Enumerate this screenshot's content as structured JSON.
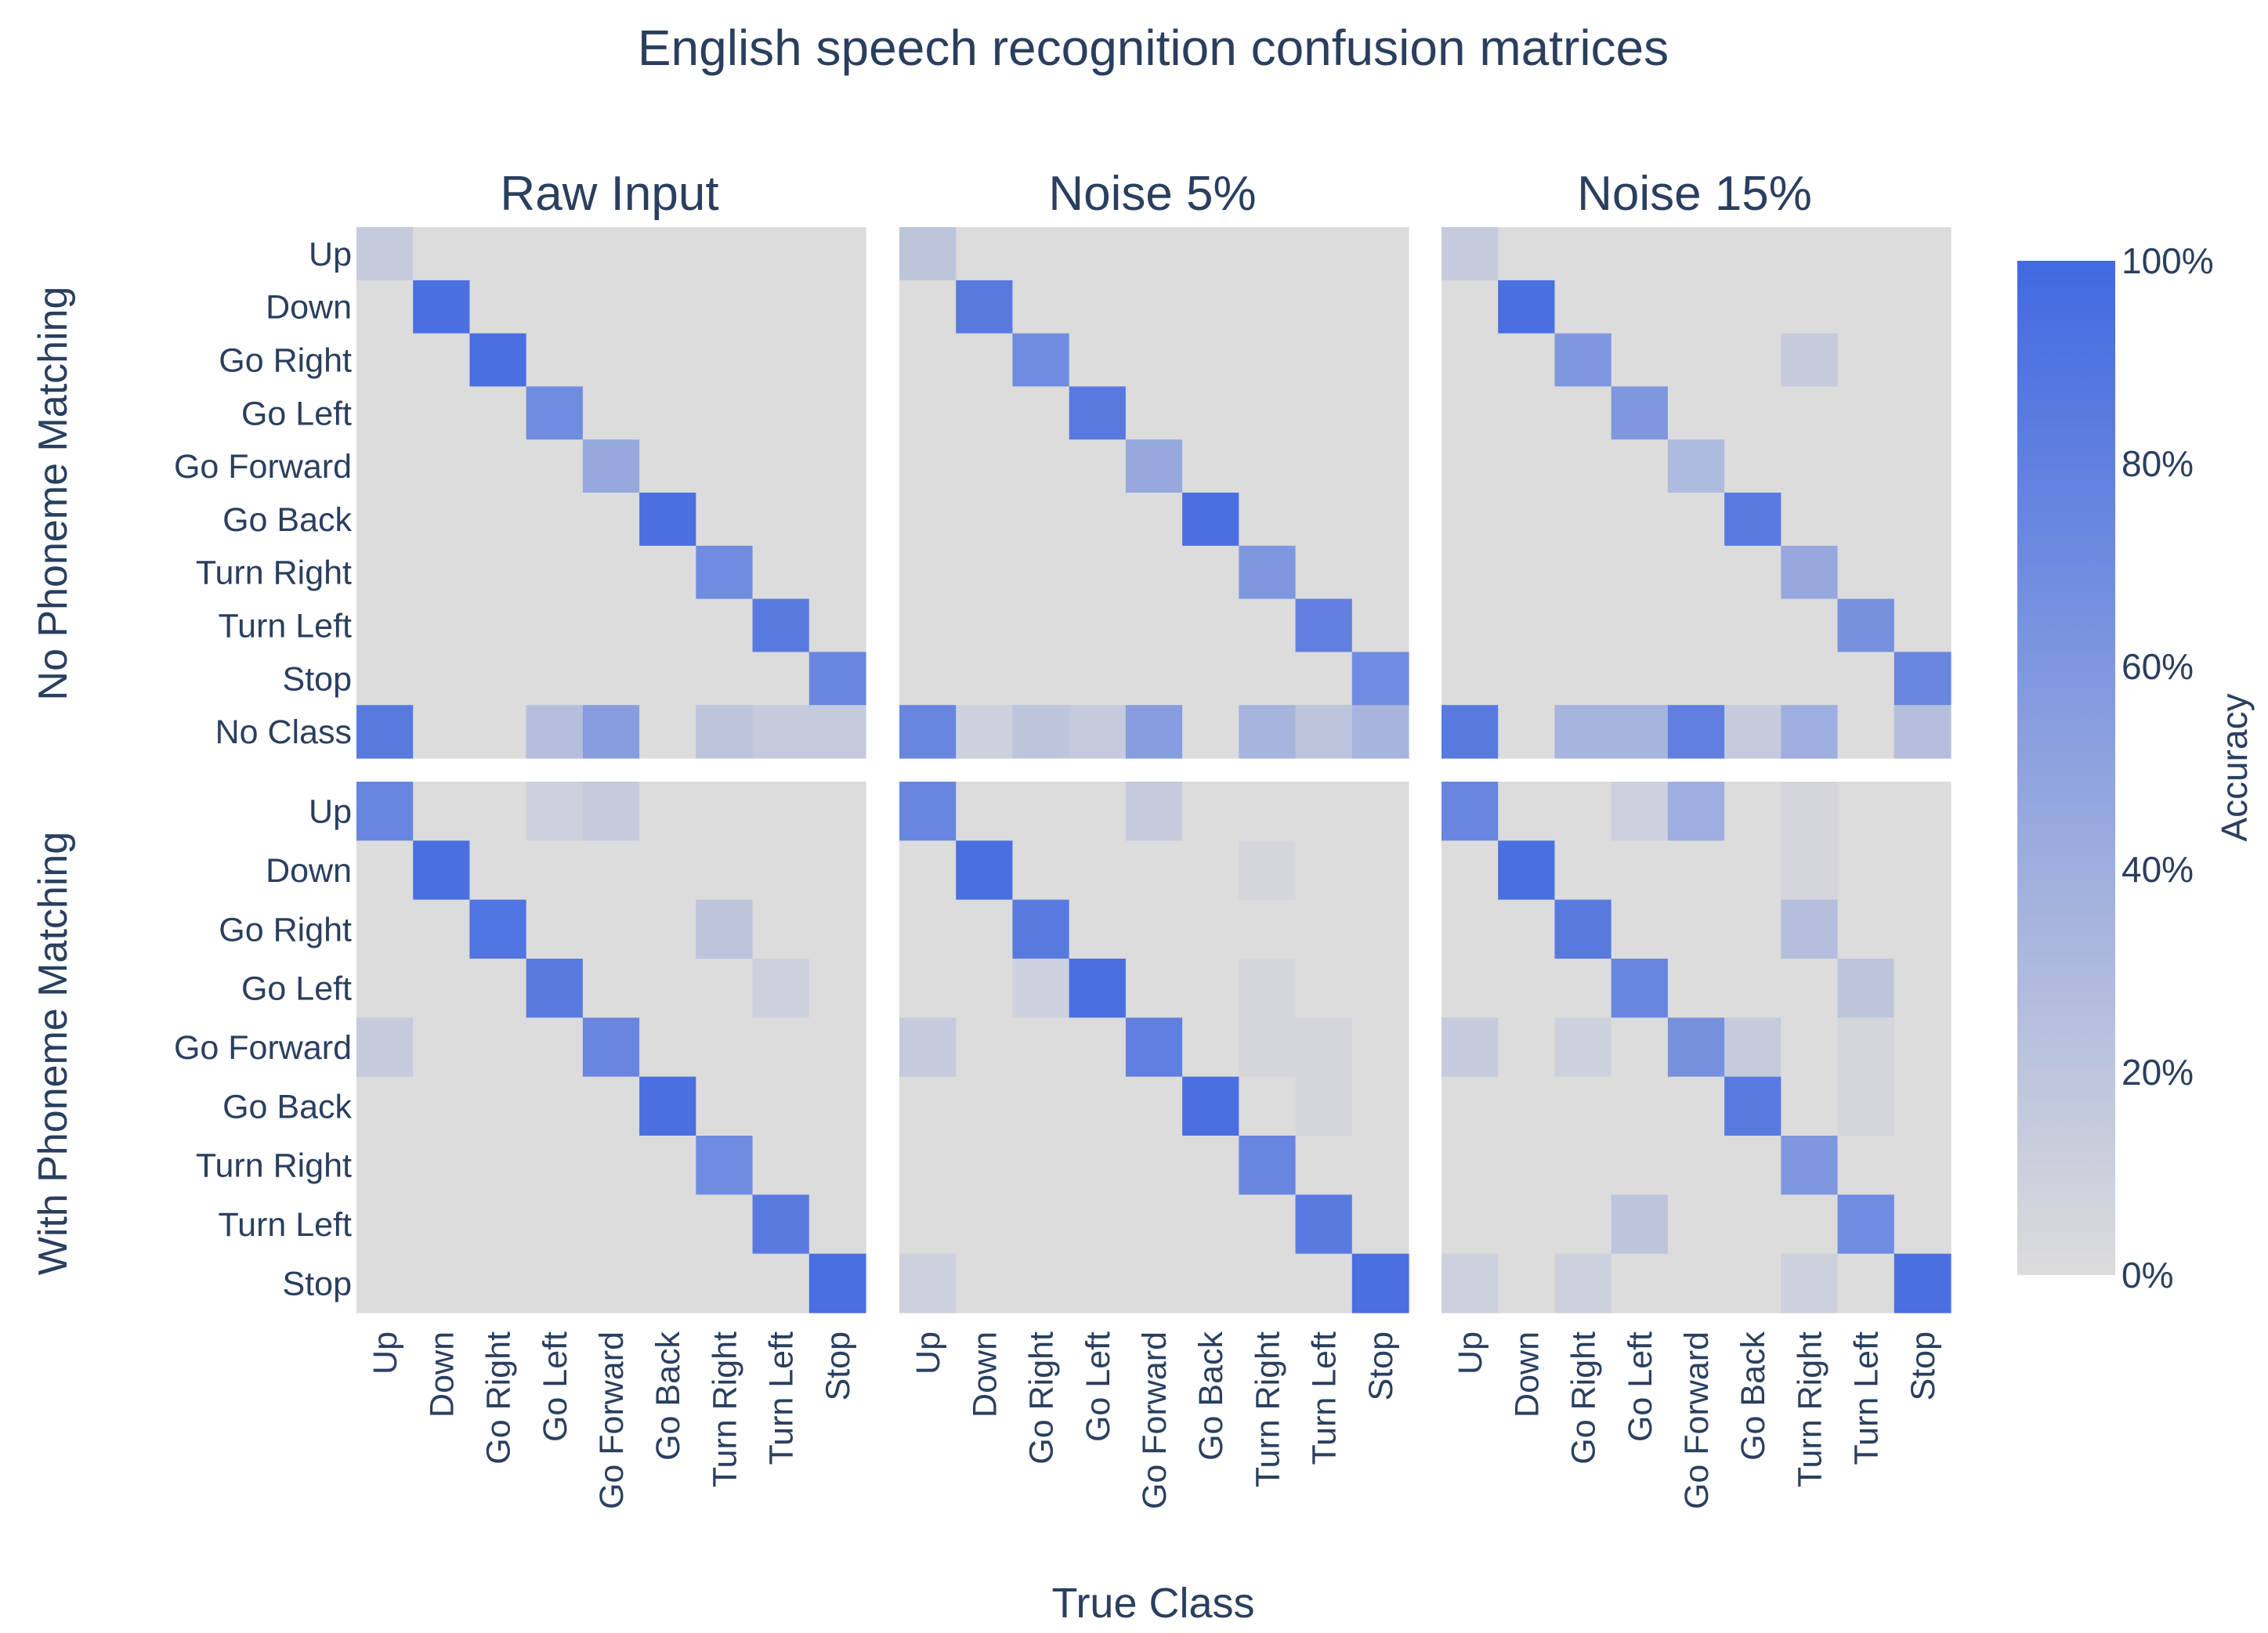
{
  "title": "English speech recognition confusion matrices",
  "xlabel": "True Class",
  "colorbar": {
    "label": "Accuracy",
    "ticks": [
      "0%",
      "20%",
      "40%",
      "60%",
      "80%",
      "100%"
    ],
    "tick_values": [
      0,
      20,
      40,
      60,
      80,
      100
    ],
    "colors": {
      "low": "#dcdcdc",
      "high": "#4169e1"
    }
  },
  "row_titles": [
    "No Phoneme Matching",
    "With Phoneme Matching"
  ],
  "col_titles": [
    "Raw Input",
    "Noise 5%",
    "Noise 15%"
  ],
  "chart_data": {
    "type": "heatmap",
    "x_categories": [
      "Up",
      "Down",
      "Go Right",
      "Go Left",
      "Go Forward",
      "Go Back",
      "Turn Right",
      "Turn Left",
      "Stop"
    ],
    "y_categories_top": [
      "Up",
      "Down",
      "Go Right",
      "Go Left",
      "Go Forward",
      "Go Back",
      "Turn Right",
      "Turn Left",
      "Stop",
      "No Class"
    ],
    "y_categories_bottom": [
      "Up",
      "Down",
      "Go Right",
      "Go Left",
      "Go Forward",
      "Go Back",
      "Turn Right",
      "Turn Left",
      "Stop"
    ],
    "zrange": [
      0,
      100
    ],
    "panels": [
      {
        "row": "No Phoneme Matching",
        "col": "Raw Input",
        "z": [
          [
            15,
            0,
            0,
            0,
            0,
            0,
            0,
            0,
            0
          ],
          [
            0,
            95,
            0,
            0,
            0,
            0,
            0,
            0,
            0
          ],
          [
            0,
            0,
            95,
            0,
            0,
            0,
            0,
            0,
            0
          ],
          [
            0,
            0,
            0,
            70,
            0,
            0,
            0,
            0,
            0
          ],
          [
            0,
            0,
            0,
            0,
            45,
            0,
            0,
            0,
            0
          ],
          [
            0,
            0,
            0,
            0,
            0,
            95,
            0,
            0,
            0
          ],
          [
            0,
            0,
            0,
            0,
            0,
            0,
            70,
            0,
            0
          ],
          [
            0,
            0,
            0,
            0,
            0,
            0,
            0,
            85,
            0
          ],
          [
            0,
            0,
            0,
            0,
            0,
            0,
            0,
            0,
            75
          ],
          [
            85,
            0,
            0,
            25,
            55,
            0,
            20,
            15,
            15
          ]
        ]
      },
      {
        "row": "No Phoneme Matching",
        "col": "Noise 5%",
        "z": [
          [
            20,
            0,
            0,
            0,
            0,
            0,
            0,
            0,
            0
          ],
          [
            0,
            85,
            0,
            0,
            0,
            0,
            0,
            0,
            0
          ],
          [
            0,
            0,
            70,
            0,
            0,
            0,
            0,
            0,
            0
          ],
          [
            0,
            0,
            0,
            85,
            0,
            0,
            0,
            0,
            0
          ],
          [
            0,
            0,
            0,
            0,
            45,
            0,
            0,
            0,
            0
          ],
          [
            0,
            0,
            0,
            0,
            0,
            95,
            0,
            0,
            0
          ],
          [
            0,
            0,
            0,
            0,
            0,
            0,
            60,
            0,
            0
          ],
          [
            0,
            0,
            0,
            0,
            0,
            0,
            0,
            80,
            0
          ],
          [
            0,
            0,
            0,
            0,
            0,
            0,
            0,
            0,
            70
          ],
          [
            75,
            10,
            20,
            15,
            55,
            0,
            35,
            20,
            35
          ]
        ]
      },
      {
        "row": "No Phoneme Matching",
        "col": "Noise 15%",
        "z": [
          [
            15,
            0,
            0,
            0,
            0,
            0,
            0,
            0,
            0
          ],
          [
            0,
            95,
            0,
            0,
            0,
            0,
            0,
            0,
            0
          ],
          [
            0,
            0,
            60,
            0,
            0,
            0,
            15,
            0,
            0
          ],
          [
            0,
            0,
            0,
            60,
            0,
            0,
            0,
            0,
            0
          ],
          [
            0,
            0,
            0,
            0,
            30,
            0,
            0,
            0,
            0
          ],
          [
            0,
            0,
            0,
            0,
            0,
            85,
            0,
            0,
            0
          ],
          [
            0,
            0,
            0,
            0,
            0,
            0,
            45,
            0,
            0
          ],
          [
            0,
            0,
            0,
            0,
            0,
            0,
            0,
            65,
            0
          ],
          [
            0,
            0,
            0,
            0,
            0,
            0,
            0,
            0,
            75
          ],
          [
            85,
            0,
            35,
            35,
            80,
            15,
            40,
            0,
            25
          ]
        ]
      },
      {
        "row": "With Phoneme Matching",
        "col": "Raw Input",
        "z": [
          [
            75,
            0,
            0,
            10,
            15,
            0,
            0,
            0,
            0
          ],
          [
            0,
            95,
            0,
            0,
            0,
            0,
            0,
            0,
            0
          ],
          [
            0,
            0,
            90,
            0,
            0,
            0,
            20,
            0,
            0
          ],
          [
            0,
            0,
            0,
            85,
            0,
            0,
            0,
            10,
            0
          ],
          [
            15,
            0,
            0,
            0,
            75,
            0,
            0,
            0,
            0
          ],
          [
            0,
            0,
            0,
            0,
            0,
            95,
            0,
            0,
            0
          ],
          [
            0,
            0,
            0,
            0,
            0,
            0,
            70,
            0,
            0
          ],
          [
            0,
            0,
            0,
            0,
            0,
            0,
            0,
            85,
            0
          ],
          [
            0,
            0,
            0,
            0,
            0,
            0,
            0,
            0,
            95
          ]
        ]
      },
      {
        "row": "With Phoneme Matching",
        "col": "Noise 5%",
        "z": [
          [
            75,
            0,
            0,
            0,
            15,
            0,
            0,
            0,
            0
          ],
          [
            0,
            95,
            0,
            0,
            0,
            0,
            5,
            0,
            0
          ],
          [
            0,
            0,
            85,
            0,
            0,
            0,
            0,
            0,
            0
          ],
          [
            0,
            0,
            10,
            95,
            0,
            0,
            5,
            0,
            0
          ],
          [
            15,
            0,
            0,
            0,
            80,
            0,
            5,
            5,
            0
          ],
          [
            0,
            0,
            0,
            0,
            0,
            95,
            0,
            5,
            0
          ],
          [
            0,
            0,
            0,
            0,
            0,
            0,
            75,
            0,
            0
          ],
          [
            0,
            0,
            0,
            0,
            0,
            0,
            0,
            85,
            0
          ],
          [
            10,
            0,
            0,
            0,
            0,
            0,
            0,
            0,
            95
          ]
        ]
      },
      {
        "row": "With Phoneme Matching",
        "col": "Noise 15%",
        "z": [
          [
            75,
            0,
            0,
            10,
            40,
            0,
            5,
            0,
            0
          ],
          [
            0,
            95,
            0,
            0,
            0,
            0,
            5,
            0,
            0
          ],
          [
            0,
            0,
            85,
            0,
            0,
            0,
            25,
            0,
            0
          ],
          [
            0,
            0,
            0,
            75,
            0,
            0,
            0,
            20,
            0
          ],
          [
            15,
            0,
            10,
            0,
            65,
            15,
            0,
            5,
            0
          ],
          [
            0,
            0,
            0,
            0,
            0,
            85,
            0,
            5,
            0
          ],
          [
            0,
            0,
            0,
            0,
            0,
            0,
            60,
            0,
            0
          ],
          [
            0,
            0,
            0,
            20,
            0,
            0,
            0,
            70,
            0
          ],
          [
            10,
            0,
            10,
            0,
            0,
            0,
            10,
            0,
            95
          ]
        ]
      }
    ]
  }
}
